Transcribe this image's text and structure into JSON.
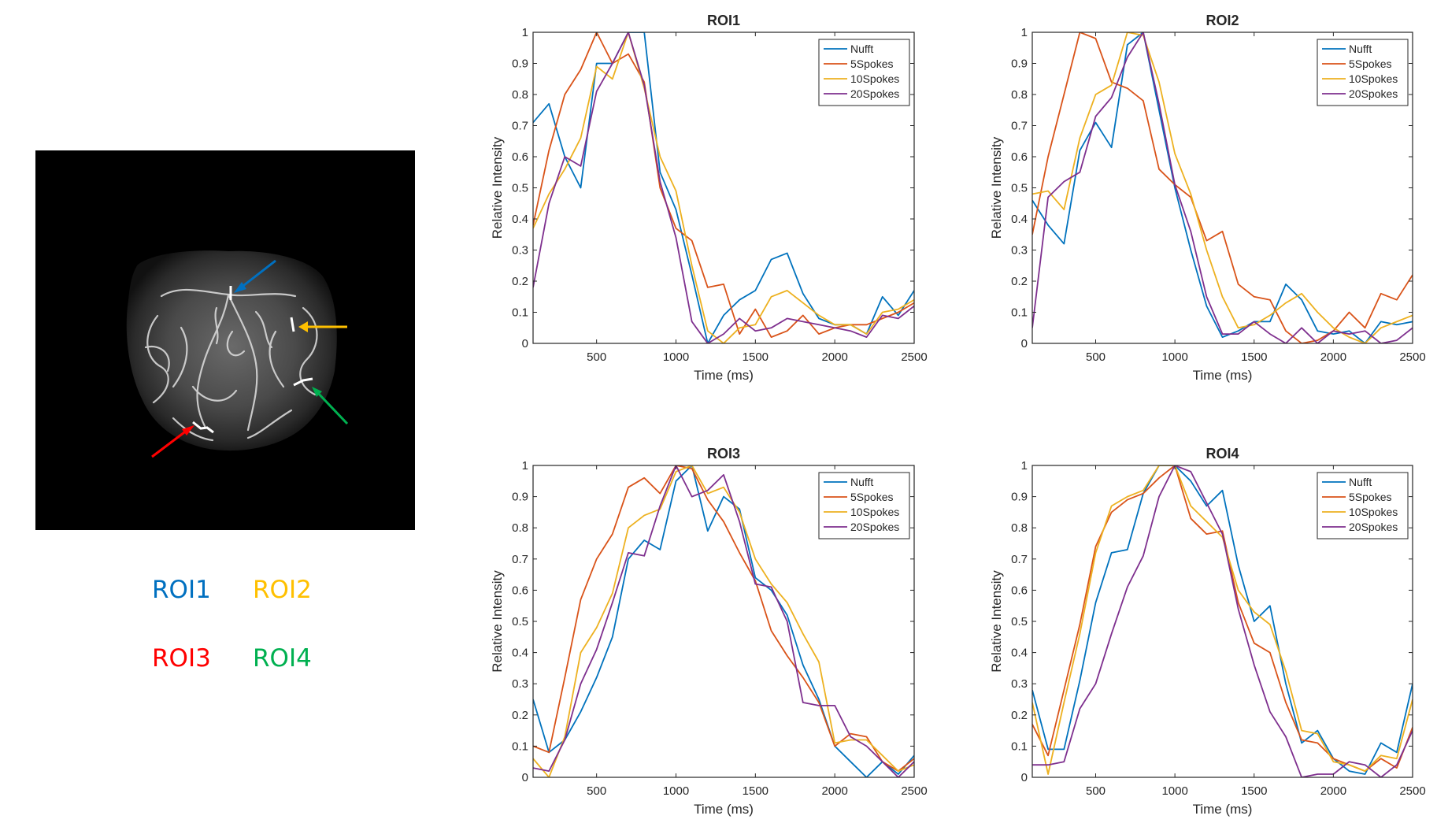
{
  "colors": {
    "nufft": "#0072BD",
    "spokes5": "#D95319",
    "spokes10": "#EDB120",
    "spokes20": "#7E2F8E",
    "roi1": "#0070C0",
    "roi2": "#FFC000",
    "roi3": "#FF0000",
    "roi4": "#00B050"
  },
  "roi_legend": [
    {
      "label": "ROI1",
      "color": "#0070C0"
    },
    {
      "label": "ROI2",
      "color": "#FFC000"
    },
    {
      "label": "ROI3",
      "color": "#FF0000"
    },
    {
      "label": "ROI4",
      "color": "#00B050"
    }
  ],
  "arrows": [
    {
      "name": "roi1-arrow",
      "color": "#0070C0"
    },
    {
      "name": "roi2-arrow",
      "color": "#FFC000"
    },
    {
      "name": "roi3-arrow",
      "color": "#FF0000"
    },
    {
      "name": "roi4-arrow",
      "color": "#00B050"
    }
  ],
  "chart_data": [
    {
      "type": "line",
      "title": "ROI1",
      "xlabel": "Time (ms)",
      "ylabel": "Relative Intensity",
      "xlim": [
        100,
        2500
      ],
      "ylim": [
        0,
        1
      ],
      "xticks": [
        500,
        1000,
        1500,
        2000,
        2500
      ],
      "yticks": [
        0,
        0.1,
        0.2,
        0.3,
        0.4,
        0.5,
        0.6,
        0.7,
        0.8,
        0.9,
        1
      ],
      "legend_position": "top-right",
      "series": [
        {
          "name": "Nufft",
          "color": "#0072BD",
          "x": [
            100,
            200,
            300,
            400,
            500,
            600,
            700,
            800,
            900,
            1000,
            1100,
            1200,
            1300,
            1400,
            1500,
            1600,
            1700,
            1800,
            1900,
            2000,
            2100,
            2200,
            2300,
            2400,
            2500
          ],
          "y": [
            0.71,
            0.77,
            0.6,
            0.5,
            0.9,
            0.9,
            1.0,
            1.0,
            0.55,
            0.43,
            0.22,
            0.0,
            0.09,
            0.14,
            0.17,
            0.27,
            0.29,
            0.16,
            0.08,
            0.06,
            0.06,
            0.03,
            0.15,
            0.09,
            0.17
          ]
        },
        {
          "name": "5Spokes",
          "color": "#D95319",
          "x": [
            100,
            200,
            300,
            400,
            500,
            600,
            700,
            800,
            900,
            1000,
            1100,
            1200,
            1300,
            1400,
            1500,
            1600,
            1700,
            1800,
            1900,
            2000,
            2100,
            2200,
            2300,
            2400,
            2500
          ],
          "y": [
            0.38,
            0.62,
            0.8,
            0.88,
            1.0,
            0.9,
            0.93,
            0.84,
            0.5,
            0.37,
            0.33,
            0.18,
            0.19,
            0.03,
            0.11,
            0.02,
            0.04,
            0.09,
            0.03,
            0.05,
            0.06,
            0.06,
            0.08,
            0.1,
            0.13
          ]
        },
        {
          "name": "10Spokes",
          "color": "#EDB120",
          "x": [
            100,
            200,
            300,
            400,
            500,
            600,
            700,
            800,
            900,
            1000,
            1100,
            1200,
            1300,
            1400,
            1500,
            1600,
            1700,
            1800,
            1900,
            2000,
            2100,
            2200,
            2300,
            2400,
            2500
          ],
          "y": [
            0.37,
            0.48,
            0.56,
            0.66,
            0.89,
            0.85,
            1.0,
            0.82,
            0.6,
            0.49,
            0.25,
            0.04,
            0.0,
            0.05,
            0.06,
            0.15,
            0.17,
            0.13,
            0.09,
            0.06,
            0.06,
            0.03,
            0.1,
            0.11,
            0.14
          ]
        },
        {
          "name": "20Spokes",
          "color": "#7E2F8E",
          "x": [
            100,
            200,
            300,
            400,
            500,
            600,
            700,
            800,
            900,
            1000,
            1100,
            1200,
            1300,
            1400,
            1500,
            1600,
            1700,
            1800,
            1900,
            2000,
            2100,
            2200,
            2300,
            2400,
            2500
          ],
          "y": [
            0.18,
            0.45,
            0.6,
            0.57,
            0.81,
            0.9,
            1.0,
            0.83,
            0.52,
            0.34,
            0.07,
            0.0,
            0.03,
            0.08,
            0.04,
            0.05,
            0.08,
            0.07,
            0.06,
            0.05,
            0.04,
            0.02,
            0.09,
            0.08,
            0.12
          ]
        }
      ]
    },
    {
      "type": "line",
      "title": "ROI2",
      "xlabel": "Time (ms)",
      "ylabel": "Relative Intensity",
      "xlim": [
        100,
        2500
      ],
      "ylim": [
        0,
        1
      ],
      "xticks": [
        500,
        1000,
        1500,
        2000,
        2500
      ],
      "yticks": [
        0,
        0.1,
        0.2,
        0.3,
        0.4,
        0.5,
        0.6,
        0.7,
        0.8,
        0.9,
        1
      ],
      "legend_position": "top-right",
      "series": [
        {
          "name": "Nufft",
          "color": "#0072BD",
          "x": [
            100,
            200,
            300,
            400,
            500,
            600,
            700,
            800,
            900,
            1000,
            1100,
            1200,
            1300,
            1400,
            1500,
            1600,
            1700,
            1800,
            1900,
            2000,
            2100,
            2200,
            2300,
            2400,
            2500
          ],
          "y": [
            0.46,
            0.38,
            0.32,
            0.62,
            0.71,
            0.63,
            0.96,
            1.0,
            0.75,
            0.5,
            0.3,
            0.12,
            0.02,
            0.04,
            0.07,
            0.07,
            0.19,
            0.14,
            0.04,
            0.03,
            0.04,
            0.0,
            0.07,
            0.06,
            0.07
          ]
        },
        {
          "name": "5Spokes",
          "color": "#D95319",
          "x": [
            100,
            200,
            300,
            400,
            500,
            600,
            700,
            800,
            900,
            1000,
            1100,
            1200,
            1300,
            1400,
            1500,
            1600,
            1700,
            1800,
            1900,
            2000,
            2100,
            2200,
            2300,
            2400,
            2500
          ],
          "y": [
            0.35,
            0.6,
            0.8,
            1.0,
            0.98,
            0.84,
            0.82,
            0.78,
            0.56,
            0.51,
            0.47,
            0.33,
            0.36,
            0.19,
            0.15,
            0.14,
            0.04,
            0.0,
            0.01,
            0.04,
            0.1,
            0.05,
            0.16,
            0.14,
            0.22
          ]
        },
        {
          "name": "10Spokes",
          "color": "#EDB120",
          "x": [
            100,
            200,
            300,
            400,
            500,
            600,
            700,
            800,
            900,
            1000,
            1100,
            1200,
            1300,
            1400,
            1500,
            1600,
            1700,
            1800,
            1900,
            2000,
            2100,
            2200,
            2300,
            2400,
            2500
          ],
          "y": [
            0.48,
            0.49,
            0.43,
            0.66,
            0.8,
            0.83,
            1.0,
            0.99,
            0.84,
            0.61,
            0.48,
            0.3,
            0.15,
            0.05,
            0.06,
            0.09,
            0.13,
            0.16,
            0.1,
            0.05,
            0.02,
            0.0,
            0.05,
            0.07,
            0.09
          ]
        },
        {
          "name": "20Spokes",
          "color": "#7E2F8E",
          "x": [
            100,
            200,
            300,
            400,
            500,
            600,
            700,
            800,
            900,
            1000,
            1100,
            1200,
            1300,
            1400,
            1500,
            1600,
            1700,
            1800,
            1900,
            2000,
            2100,
            2200,
            2300,
            2400,
            2500
          ],
          "y": [
            0.05,
            0.47,
            0.52,
            0.55,
            0.73,
            0.79,
            0.92,
            1.0,
            0.77,
            0.51,
            0.36,
            0.15,
            0.03,
            0.03,
            0.07,
            0.03,
            0.0,
            0.05,
            0.0,
            0.04,
            0.03,
            0.04,
            0.0,
            0.01,
            0.05
          ]
        }
      ]
    },
    {
      "type": "line",
      "title": "ROI3",
      "xlabel": "Time (ms)",
      "ylabel": "Relative Intensity",
      "xlim": [
        100,
        2500
      ],
      "ylim": [
        0,
        1
      ],
      "xticks": [
        500,
        1000,
        1500,
        2000,
        2500
      ],
      "yticks": [
        0,
        0.1,
        0.2,
        0.3,
        0.4,
        0.5,
        0.6,
        0.7,
        0.8,
        0.9,
        1
      ],
      "legend_position": "top-right",
      "series": [
        {
          "name": "Nufft",
          "color": "#0072BD",
          "x": [
            100,
            200,
            300,
            400,
            500,
            600,
            700,
            800,
            900,
            1000,
            1100,
            1200,
            1300,
            1400,
            1500,
            1600,
            1700,
            1800,
            1900,
            2000,
            2100,
            2200,
            2300,
            2400,
            2500
          ],
          "y": [
            0.25,
            0.08,
            0.12,
            0.21,
            0.32,
            0.45,
            0.7,
            0.76,
            0.73,
            0.95,
            1.0,
            0.79,
            0.9,
            0.86,
            0.64,
            0.6,
            0.52,
            0.36,
            0.25,
            0.1,
            0.05,
            0.0,
            0.05,
            0.01,
            0.07
          ]
        },
        {
          "name": "5Spokes",
          "color": "#D95319",
          "x": [
            100,
            200,
            300,
            400,
            500,
            600,
            700,
            800,
            900,
            1000,
            1100,
            1200,
            1300,
            1400,
            1500,
            1600,
            1700,
            1800,
            1900,
            2000,
            2100,
            2200,
            2300,
            2400,
            2500
          ],
          "y": [
            0.1,
            0.08,
            0.32,
            0.57,
            0.7,
            0.78,
            0.93,
            0.96,
            0.91,
            1.0,
            0.99,
            0.89,
            0.82,
            0.72,
            0.63,
            0.47,
            0.39,
            0.32,
            0.24,
            0.1,
            0.14,
            0.13,
            0.05,
            0.02,
            0.06
          ]
        },
        {
          "name": "10Spokes",
          "color": "#EDB120",
          "x": [
            100,
            200,
            300,
            400,
            500,
            600,
            700,
            800,
            900,
            1000,
            1100,
            1200,
            1300,
            1400,
            1500,
            1600,
            1700,
            1800,
            1900,
            2000,
            2100,
            2200,
            2300,
            2400,
            2500
          ],
          "y": [
            0.06,
            0.0,
            0.13,
            0.4,
            0.48,
            0.59,
            0.8,
            0.84,
            0.86,
            0.98,
            1.0,
            0.91,
            0.93,
            0.85,
            0.7,
            0.62,
            0.56,
            0.46,
            0.37,
            0.11,
            0.12,
            0.12,
            0.07,
            0.02,
            0.04
          ]
        },
        {
          "name": "20Spokes",
          "color": "#7E2F8E",
          "x": [
            100,
            200,
            300,
            400,
            500,
            600,
            700,
            800,
            900,
            1000,
            1100,
            1200,
            1300,
            1400,
            1500,
            1600,
            1700,
            1800,
            1900,
            2000,
            2100,
            2200,
            2300,
            2400,
            2500
          ],
          "y": [
            0.03,
            0.02,
            0.12,
            0.3,
            0.41,
            0.56,
            0.72,
            0.71,
            0.87,
            1.0,
            0.9,
            0.92,
            0.97,
            0.82,
            0.62,
            0.61,
            0.5,
            0.24,
            0.23,
            0.23,
            0.13,
            0.1,
            0.05,
            0.0,
            0.05
          ]
        }
      ]
    },
    {
      "type": "line",
      "title": "ROI4",
      "xlabel": "Time (ms)",
      "ylabel": "Relative Intensity",
      "xlim": [
        100,
        2500
      ],
      "ylim": [
        0,
        1
      ],
      "xticks": [
        500,
        1000,
        1500,
        2000,
        2500
      ],
      "yticks": [
        0,
        0.1,
        0.2,
        0.3,
        0.4,
        0.5,
        0.6,
        0.7,
        0.8,
        0.9,
        1
      ],
      "legend_position": "top-right",
      "series": [
        {
          "name": "Nufft",
          "color": "#0072BD",
          "x": [
            100,
            200,
            300,
            400,
            500,
            600,
            700,
            800,
            900,
            1000,
            1100,
            1200,
            1300,
            1400,
            1500,
            1600,
            1700,
            1800,
            1900,
            2000,
            2100,
            2200,
            2300,
            2400,
            2500
          ],
          "y": [
            0.28,
            0.09,
            0.09,
            0.31,
            0.56,
            0.72,
            0.73,
            0.91,
            1.0,
            1.0,
            0.95,
            0.87,
            0.92,
            0.68,
            0.5,
            0.55,
            0.3,
            0.11,
            0.15,
            0.06,
            0.02,
            0.01,
            0.11,
            0.08,
            0.3
          ]
        },
        {
          "name": "5Spokes",
          "color": "#D95319",
          "x": [
            100,
            200,
            300,
            400,
            500,
            600,
            700,
            800,
            900,
            1000,
            1100,
            1200,
            1300,
            1400,
            1500,
            1600,
            1700,
            1800,
            1900,
            2000,
            2100,
            2200,
            2300,
            2400,
            2500
          ],
          "y": [
            0.17,
            0.07,
            0.28,
            0.49,
            0.74,
            0.85,
            0.89,
            0.91,
            0.96,
            1.0,
            0.83,
            0.78,
            0.79,
            0.56,
            0.43,
            0.4,
            0.24,
            0.12,
            0.11,
            0.06,
            0.04,
            0.02,
            0.06,
            0.03,
            0.16
          ]
        },
        {
          "name": "10Spokes",
          "color": "#EDB120",
          "x": [
            100,
            200,
            300,
            400,
            500,
            600,
            700,
            800,
            900,
            1000,
            1100,
            1200,
            1300,
            1400,
            1500,
            1600,
            1700,
            1800,
            1900,
            2000,
            2100,
            2200,
            2300,
            2400,
            2500
          ],
          "y": [
            0.24,
            0.01,
            0.24,
            0.46,
            0.72,
            0.87,
            0.9,
            0.92,
            1.0,
            1.0,
            0.87,
            0.82,
            0.77,
            0.6,
            0.53,
            0.49,
            0.34,
            0.15,
            0.14,
            0.05,
            0.04,
            0.02,
            0.07,
            0.06,
            0.25
          ]
        },
        {
          "name": "20Spokes",
          "color": "#7E2F8E",
          "x": [
            100,
            200,
            300,
            400,
            500,
            600,
            700,
            800,
            900,
            1000,
            1100,
            1200,
            1300,
            1400,
            1500,
            1600,
            1700,
            1800,
            1900,
            2000,
            2100,
            2200,
            2300,
            2400,
            2500
          ],
          "y": [
            0.04,
            0.04,
            0.05,
            0.22,
            0.3,
            0.46,
            0.61,
            0.71,
            0.9,
            1.0,
            0.98,
            0.88,
            0.78,
            0.54,
            0.36,
            0.21,
            0.13,
            0.0,
            0.01,
            0.01,
            0.05,
            0.04,
            0.0,
            0.04,
            0.15
          ]
        }
      ]
    }
  ]
}
